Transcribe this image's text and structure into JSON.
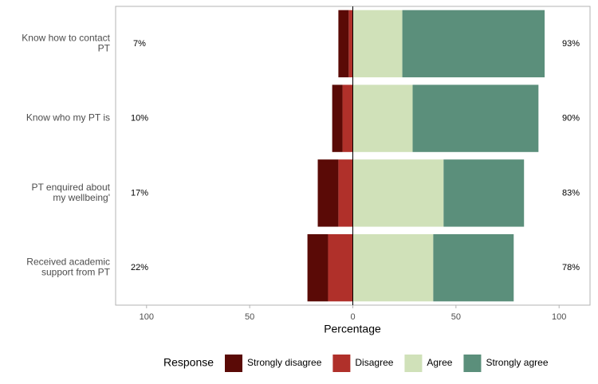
{
  "chart_data": {
    "type": "diverging_bar",
    "x_label": "Percentage",
    "categories": [
      "Know how to contact PT",
      "Know who my PT is",
      "PT enquired about my wellbeing'",
      "Received academic support from PT"
    ],
    "series": [
      {
        "name": "Strongly disagree",
        "color": "#5a0a06",
        "values": [
          -5,
          -5,
          -10,
          -10
        ]
      },
      {
        "name": "Disagree",
        "color": "#b0302a",
        "values": [
          -2,
          -5,
          -7,
          -12
        ]
      },
      {
        "name": "Agree",
        "color": "#d0e1b9",
        "values": [
          24,
          29,
          44,
          39
        ]
      },
      {
        "name": "Strongly agree",
        "color": "#5b8f7b",
        "values": [
          69,
          61,
          39,
          39
        ]
      }
    ],
    "left_labels": [
      "7%",
      "10%",
      "17%",
      "22%"
    ],
    "right_labels": [
      "93%",
      "90%",
      "83%",
      "78%"
    ],
    "xlim": [
      -115,
      115
    ],
    "xticks": [
      {
        "value": -100,
        "label": "100"
      },
      {
        "value": -50,
        "label": "50"
      },
      0,
      50,
      100
    ],
    "legend_title": "Response",
    "legend_position": "bottom"
  }
}
